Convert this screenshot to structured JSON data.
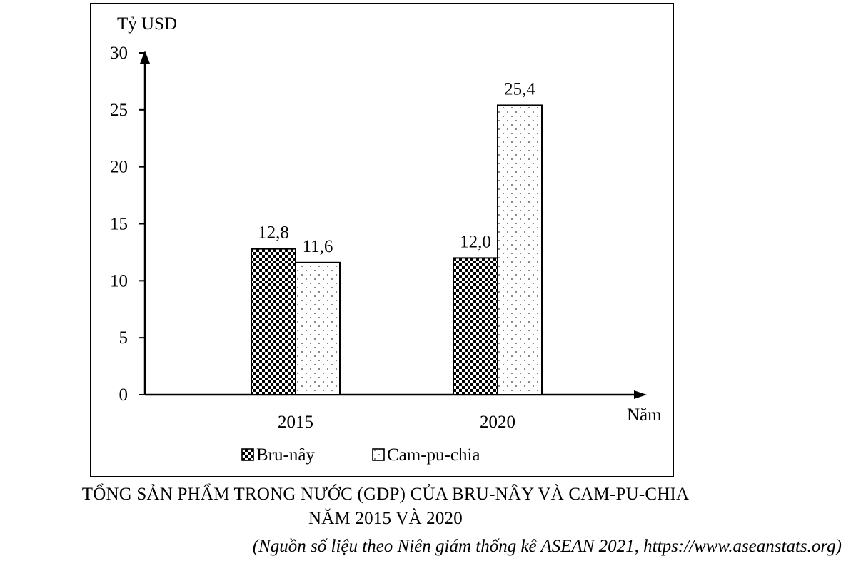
{
  "chart_data": {
    "type": "bar",
    "ylabel": "Tỷ USD",
    "xlabel": "Năm",
    "categories": [
      "2015",
      "2020"
    ],
    "series": [
      {
        "name": "Bru-nây",
        "values": [
          12.8,
          12.0
        ],
        "labels": [
          "12,8",
          "12,0"
        ],
        "pattern": "checkerboard"
      },
      {
        "name": "Cam-pu-chia",
        "values": [
          11.6,
          25.4
        ],
        "labels": [
          "11,6",
          "25,4"
        ],
        "pattern": "dots"
      }
    ],
    "ylim": [
      0,
      30
    ],
    "yticks": [
      0,
      5,
      10,
      15,
      20,
      25,
      30
    ],
    "grid": false,
    "legend_position": "bottom"
  },
  "caption": {
    "line1": "TỔNG SẢN PHẨM TRONG NƯỚC (GDP) CỦA BRU-NÂY VÀ CAM-PU-CHIA",
    "line2": "NĂM 2015 VÀ 2020"
  },
  "source": "(Nguồn số liệu theo Niên giám thống kê ASEAN 2021, https://www.aseanstats.org)"
}
